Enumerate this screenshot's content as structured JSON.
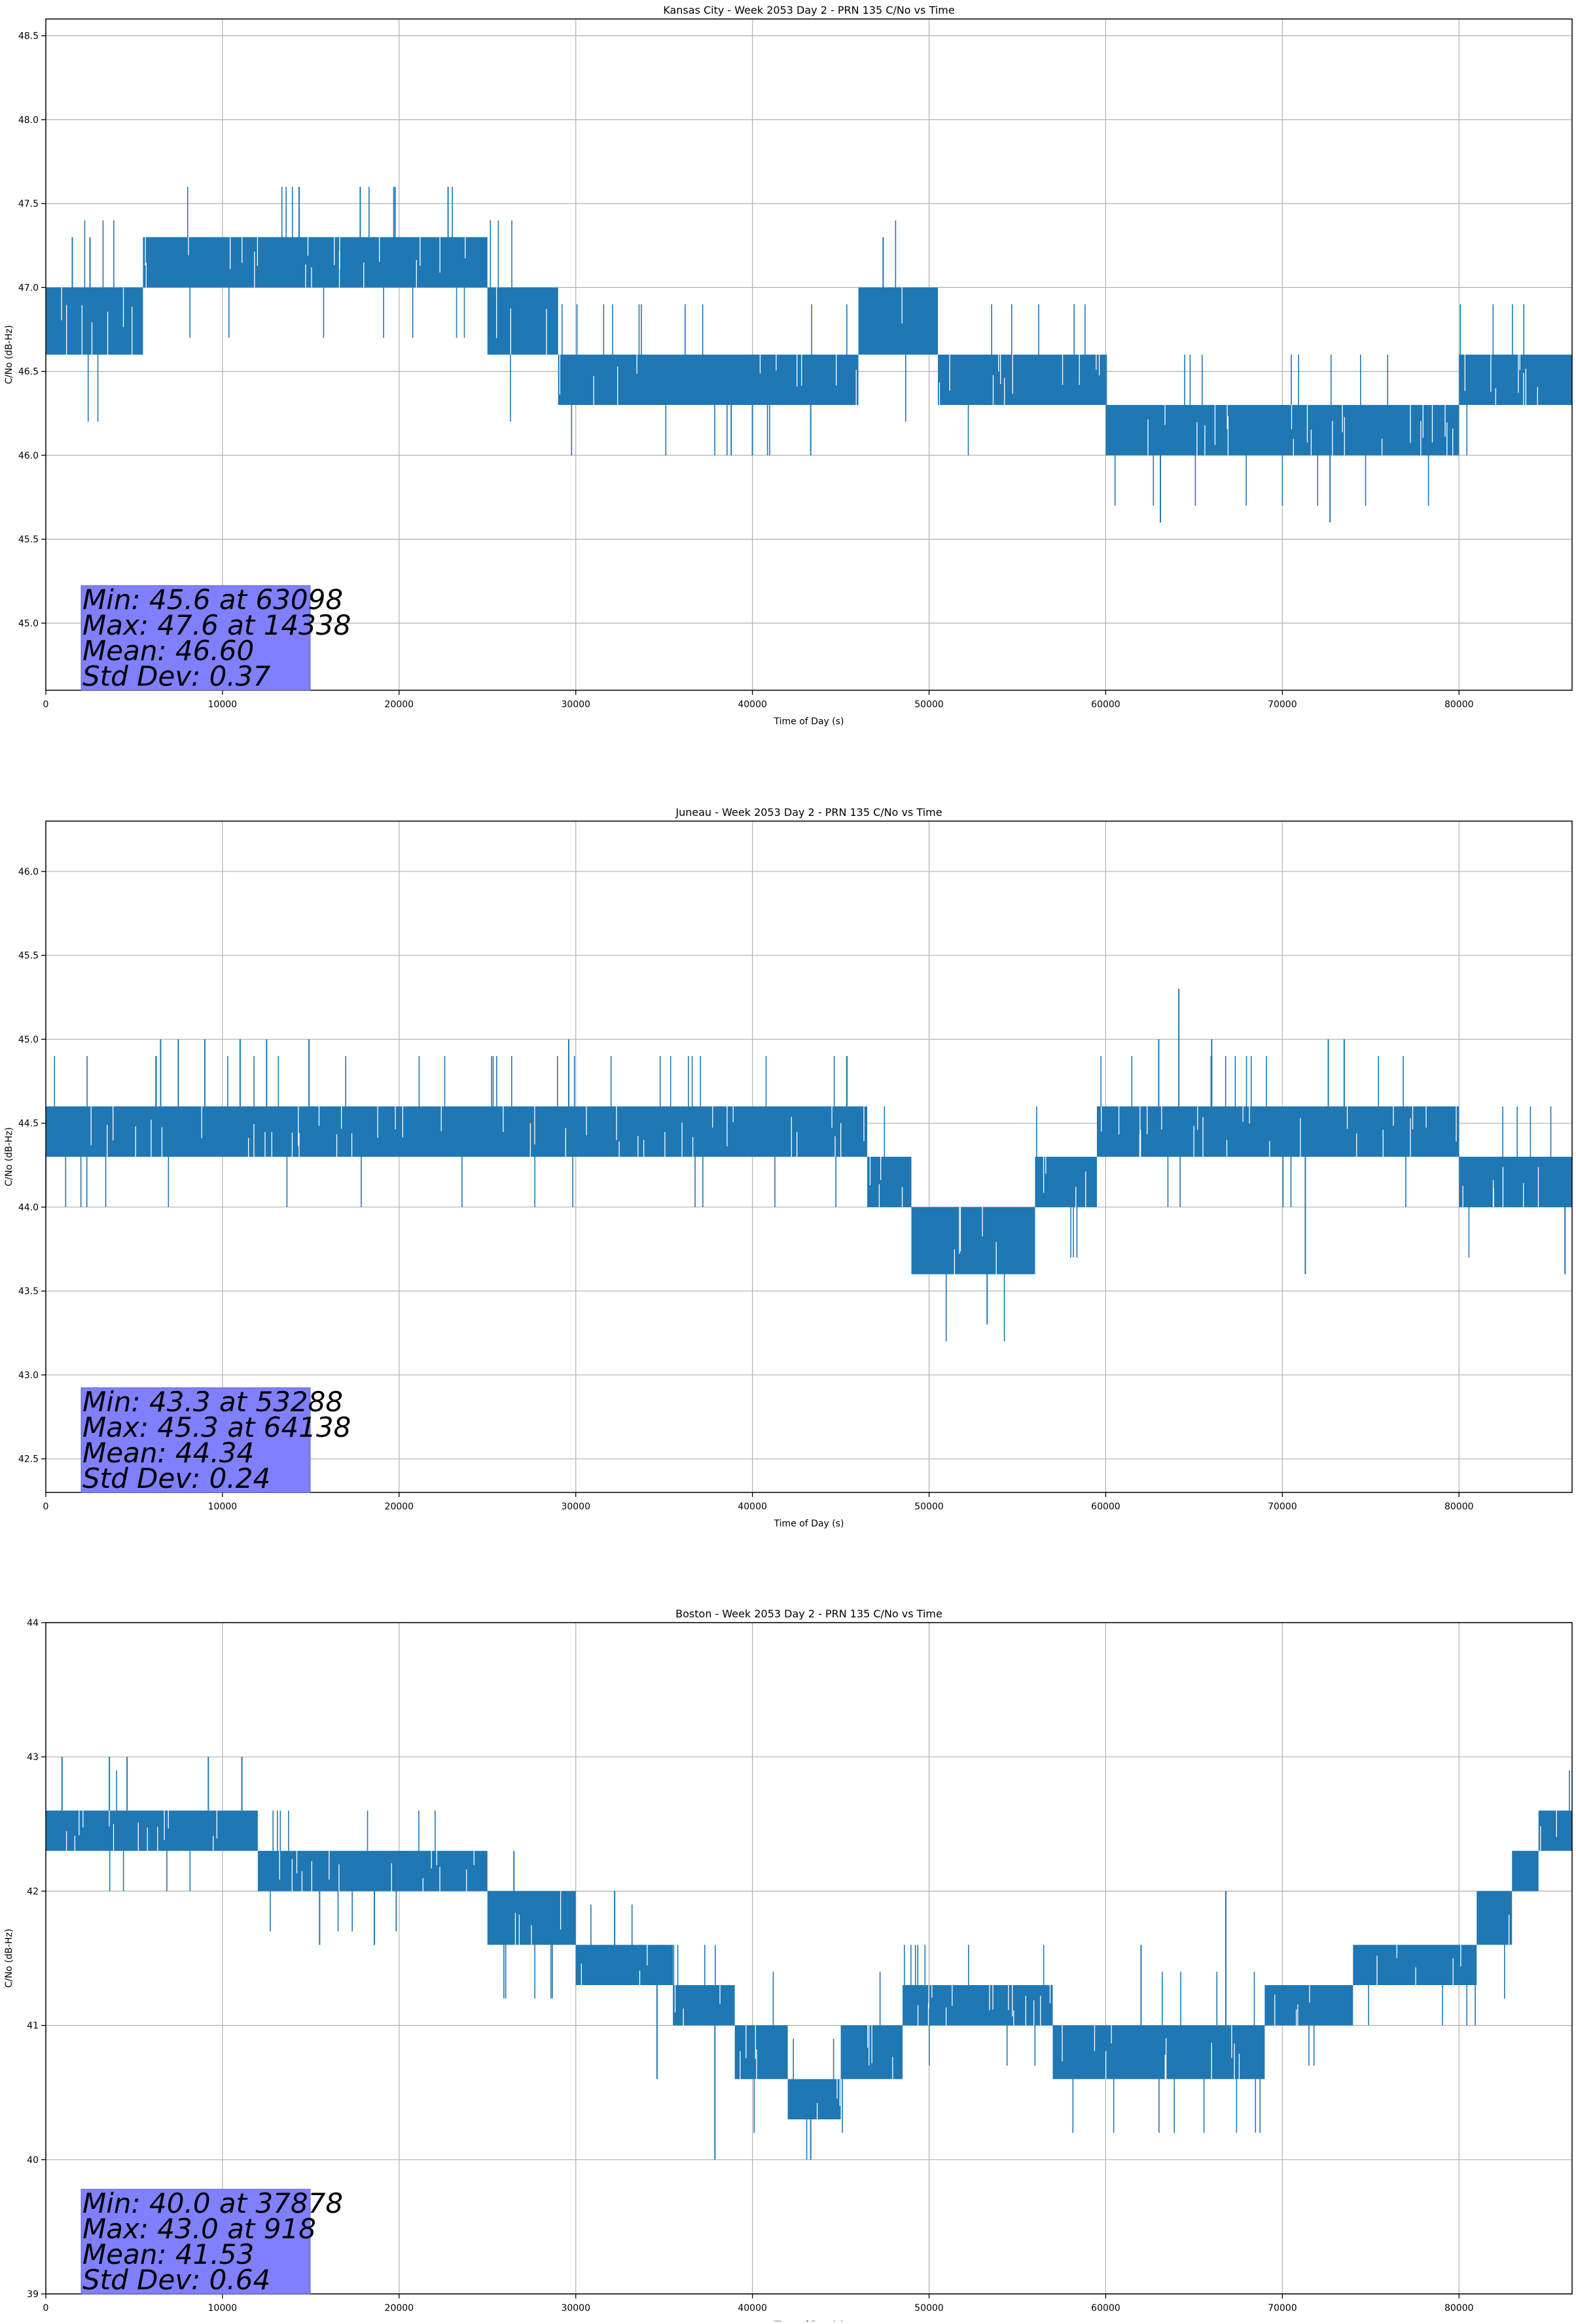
{
  "figure": {
    "background": "#ffffff",
    "series_color": "#1f77b4",
    "stats_box_color": "#8080ff"
  },
  "chart_data": [
    {
      "type": "line",
      "title": "Kansas City - Week 2053 Day 2 - PRN 135 C/No vs Time",
      "xlabel": "Time of Day (s)",
      "ylabel": "C/No (dB-Hz)",
      "xlim": [
        0,
        86400
      ],
      "ylim": [
        44.6,
        48.6
      ],
      "xticks": [
        0,
        10000,
        20000,
        30000,
        40000,
        50000,
        60000,
        70000,
        80000
      ],
      "yticks": [
        "45.0",
        "45.5",
        "46.0",
        "46.5",
        "47.0",
        "47.5",
        "48.0",
        "48.5"
      ],
      "grid": true,
      "series": [
        {
          "color": "#1f77b4",
          "segments": [
            {
              "x": [
                0,
                5500
              ],
              "lo": 46.6,
              "hi": 47.0
            },
            {
              "x": [
                5500,
                25000
              ],
              "lo": 47.0,
              "hi": 47.3
            },
            {
              "x": [
                25000,
                29000
              ],
              "lo": 46.6,
              "hi": 47.0
            },
            {
              "x": [
                29000,
                46000
              ],
              "lo": 46.3,
              "hi": 46.6
            },
            {
              "x": [
                46000,
                50500
              ],
              "lo": 46.6,
              "hi": 47.0
            },
            {
              "x": [
                50500,
                60000
              ],
              "lo": 46.3,
              "hi": 46.6
            },
            {
              "x": [
                60000,
                80000
              ],
              "lo": 46.0,
              "hi": 46.3
            },
            {
              "x": [
                80000,
                86400
              ],
              "lo": 46.3,
              "hi": 46.6
            }
          ],
          "spikes": [
            {
              "x": 14338,
              "y": 47.6
            },
            {
              "x": 17800,
              "y": 47.6
            },
            {
              "x": 19700,
              "y": 47.6
            },
            {
              "x": 47400,
              "y": 47.3
            },
            {
              "x": 63098,
              "y": 45.6
            },
            {
              "x": 72700,
              "y": 45.6
            },
            {
              "x": 38800,
              "y": 46.0
            },
            {
              "x": 40000,
              "y": 46.0
            },
            {
              "x": 43300,
              "y": 46.0
            },
            {
              "x": 1500,
              "y": 47.3
            },
            {
              "x": 2500,
              "y": 47.3
            }
          ]
        }
      ],
      "stats": [
        "Min: 45.6 at 63098",
        "Max: 47.6 at 14338",
        "Mean: 46.60",
        "Std Dev: 0.37"
      ]
    },
    {
      "type": "line",
      "title": "Juneau - Week 2053 Day 2 - PRN 135 C/No vs Time",
      "xlabel": "Time of Day (s)",
      "ylabel": "C/No (dB-Hz)",
      "xlim": [
        0,
        86400
      ],
      "ylim": [
        42.3,
        46.3
      ],
      "xticks": [
        0,
        10000,
        20000,
        30000,
        40000,
        50000,
        60000,
        70000,
        80000
      ],
      "yticks": [
        "42.5",
        "43.0",
        "43.5",
        "44.0",
        "44.5",
        "45.0",
        "45.5",
        "46.0"
      ],
      "grid": true,
      "series": [
        {
          "color": "#1f77b4",
          "segments": [
            {
              "x": [
                0,
                46500
              ],
              "lo": 44.3,
              "hi": 44.6
            },
            {
              "x": [
                46500,
                49000
              ],
              "lo": 44.0,
              "hi": 44.3
            },
            {
              "x": [
                49000,
                56000
              ],
              "lo": 43.6,
              "hi": 44.0
            },
            {
              "x": [
                56000,
                59500
              ],
              "lo": 44.0,
              "hi": 44.3
            },
            {
              "x": [
                59500,
                80000
              ],
              "lo": 44.3,
              "hi": 44.6
            },
            {
              "x": [
                80000,
                86400
              ],
              "lo": 44.0,
              "hi": 44.3
            }
          ],
          "spikes": [
            {
              "x": 6500,
              "y": 45.0
            },
            {
              "x": 7500,
              "y": 45.0
            },
            {
              "x": 9000,
              "y": 45.0
            },
            {
              "x": 11000,
              "y": 45.0
            },
            {
              "x": 12500,
              "y": 45.0
            },
            {
              "x": 14900,
              "y": 45.0
            },
            {
              "x": 29600,
              "y": 45.0
            },
            {
              "x": 53288,
              "y": 43.3
            },
            {
              "x": 64138,
              "y": 45.3
            },
            {
              "x": 63000,
              "y": 45.0
            },
            {
              "x": 66000,
              "y": 45.0
            },
            {
              "x": 72600,
              "y": 45.0
            },
            {
              "x": 73500,
              "y": 45.0
            },
            {
              "x": 71300,
              "y": 43.6
            },
            {
              "x": 86000,
              "y": 43.6
            }
          ]
        }
      ],
      "stats": [
        "Min: 43.3 at 53288",
        "Max: 45.3 at 64138",
        "Mean: 44.34",
        "Std Dev: 0.24"
      ]
    },
    {
      "type": "line",
      "title": "Boston - Week 2053 Day 2 - PRN 135 C/No vs Time",
      "xlabel": "Time of Day (s)",
      "ylabel": "C/No (dB-Hz)",
      "xlim": [
        0,
        86400
      ],
      "ylim": [
        39,
        44
      ],
      "xticks": [
        0,
        10000,
        20000,
        30000,
        40000,
        50000,
        60000,
        70000,
        80000
      ],
      "yticks": [
        "39",
        "40",
        "41",
        "42",
        "43",
        "44"
      ],
      "grid": true,
      "series": [
        {
          "color": "#1f77b4",
          "segments": [
            {
              "x": [
                0,
                12000
              ],
              "lo": 42.3,
              "hi": 42.6
            },
            {
              "x": [
                12000,
                25000
              ],
              "lo": 42.0,
              "hi": 42.3
            },
            {
              "x": [
                25000,
                30000
              ],
              "lo": 41.6,
              "hi": 42.0
            },
            {
              "x": [
                30000,
                35500
              ],
              "lo": 41.3,
              "hi": 41.6
            },
            {
              "x": [
                35500,
                39000
              ],
              "lo": 41.0,
              "hi": 41.3
            },
            {
              "x": [
                39000,
                42000
              ],
              "lo": 40.6,
              "hi": 41.0
            },
            {
              "x": [
                42000,
                45000
              ],
              "lo": 40.3,
              "hi": 40.6
            },
            {
              "x": [
                45000,
                48500
              ],
              "lo": 40.6,
              "hi": 41.0
            },
            {
              "x": [
                48500,
                57000
              ],
              "lo": 41.0,
              "hi": 41.3
            },
            {
              "x": [
                57000,
                69000
              ],
              "lo": 40.6,
              "hi": 41.0
            },
            {
              "x": [
                69000,
                74000
              ],
              "lo": 41.0,
              "hi": 41.3
            },
            {
              "x": [
                74000,
                81000
              ],
              "lo": 41.3,
              "hi": 41.6
            },
            {
              "x": [
                81000,
                83000
              ],
              "lo": 41.6,
              "hi": 42.0
            },
            {
              "x": [
                83000,
                84500
              ],
              "lo": 42.0,
              "hi": 42.3
            },
            {
              "x": [
                84500,
                86400
              ],
              "lo": 42.3,
              "hi": 42.6
            }
          ],
          "spikes": [
            {
              "x": 918,
              "y": 43.0
            },
            {
              "x": 3600,
              "y": 43.0
            },
            {
              "x": 4600,
              "y": 43.0
            },
            {
              "x": 9200,
              "y": 43.0
            },
            {
              "x": 11100,
              "y": 43.0
            },
            {
              "x": 37878,
              "y": 40.0
            },
            {
              "x": 43300,
              "y": 40.0
            },
            {
              "x": 34600,
              "y": 40.6
            },
            {
              "x": 32200,
              "y": 42.0
            },
            {
              "x": 62000,
              "y": 41.6
            },
            {
              "x": 66800,
              "y": 42.0
            },
            {
              "x": 15500,
              "y": 41.6
            },
            {
              "x": 18600,
              "y": 41.6
            },
            {
              "x": 26500,
              "y": 42.3
            }
          ]
        }
      ],
      "stats": [
        "Min: 40.0 at 37878",
        "Max: 43.0 at 918",
        "Mean: 41.53",
        "Std Dev: 0.64"
      ]
    }
  ]
}
